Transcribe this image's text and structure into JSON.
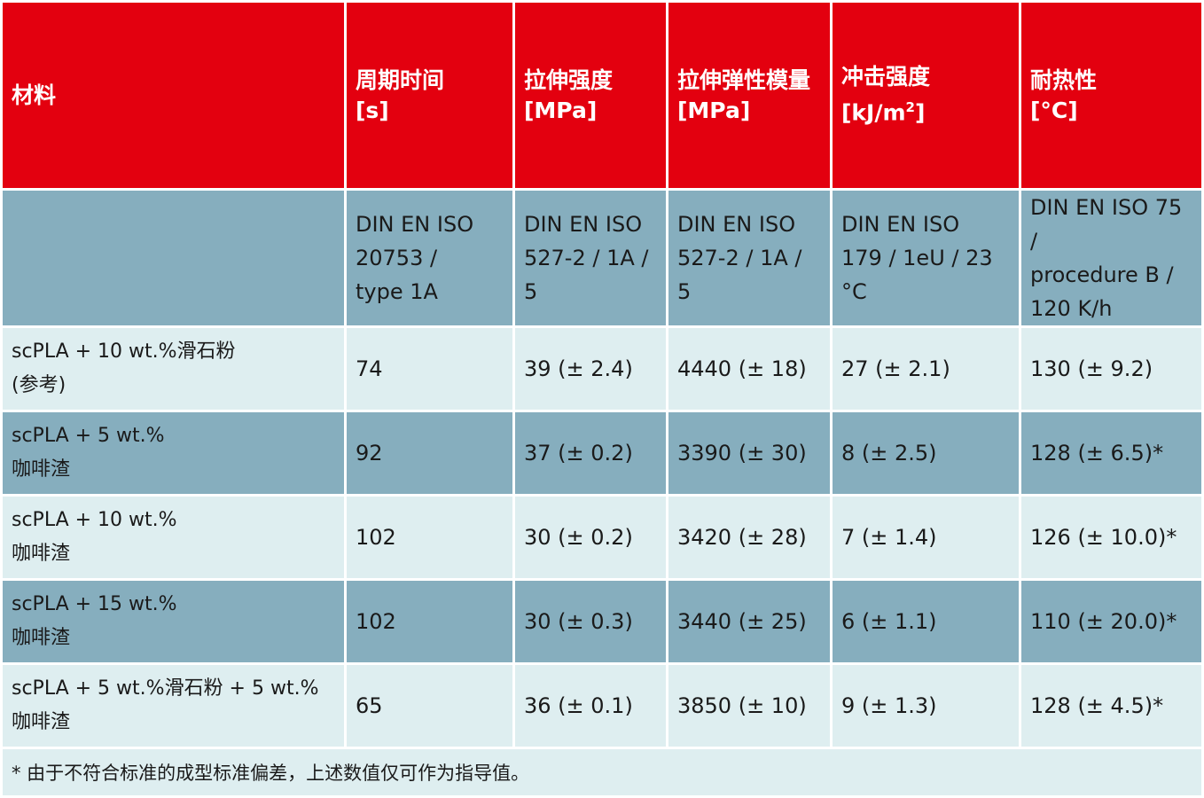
{
  "header": {
    "material": "材料",
    "cycle": {
      "name": "周期时间",
      "unit": "[s]"
    },
    "tensile": {
      "name": "拉伸强度",
      "unit": "[MPa]"
    },
    "modulus": {
      "name": "拉伸弹性模量",
      "unit": "[MPa]"
    },
    "impact": {
      "name": "冲击强度",
      "unit_prefix": "[kJ/m",
      "unit_sup": "2",
      "unit_suffix": "]"
    },
    "heat": {
      "name": "耐热性",
      "unit": "[°C]"
    }
  },
  "norms": {
    "cycle": [
      "DIN EN ISO",
      "20753 /",
      "type 1A"
    ],
    "tensile": [
      "DIN EN ISO",
      "527-2 / 1A / 5"
    ],
    "modulus": [
      "DIN EN ISO",
      "527-2 / 1A / 5"
    ],
    "impact": [
      "DIN EN ISO",
      "179 / 1eU / 23 °C"
    ],
    "heat": [
      "DIN EN ISO 75 /",
      "procedure B /",
      "120 K/h"
    ]
  },
  "rows": [
    {
      "material": [
        "scPLA + 10 wt.%滑石粉",
        "(参考)"
      ],
      "cycle": "74",
      "tensile": "39 (± 2.4)",
      "modulus": "4440 (± 18)",
      "impact": "27 (± 2.1)",
      "heat": "130 (± 9.2)"
    },
    {
      "material": [
        "scPLA + 5 wt.%",
        "咖啡渣"
      ],
      "cycle": "92",
      "tensile": "37 (± 0.2)",
      "modulus": "3390 (± 30)",
      "impact": "8 (± 2.5)",
      "heat": "128 (± 6.5)*"
    },
    {
      "material": [
        "scPLA + 10 wt.%",
        "咖啡渣"
      ],
      "cycle": "102",
      "tensile": "30 (± 0.2)",
      "modulus": "3420 (± 28)",
      "impact": "7 (± 1.4)",
      "heat": "126 (± 10.0)*"
    },
    {
      "material": [
        "scPLA + 15 wt.%",
        "咖啡渣"
      ],
      "cycle": "102",
      "tensile": "30 (± 0.3)",
      "modulus": "3440 (± 25)",
      "impact": "6 (± 1.1)",
      "heat": "110 (± 20.0)*"
    },
    {
      "material": [
        "scPLA + 5 wt.%滑石粉 + 5 wt.%",
        "咖啡渣"
      ],
      "cycle": "65",
      "tensile": "36 (± 0.1)",
      "modulus": "3850 (± 10)",
      "impact": "9 (± 1.3)",
      "heat": "128 (± 4.5)*"
    }
  ],
  "footnote": "* 由于不符合标准的成型标准偏差，上述数值仅可作为指导值。",
  "colors": {
    "header_bg": "#e3000f",
    "dark_row_bg": "#86aebe",
    "light_row_bg": "#deeef0"
  }
}
